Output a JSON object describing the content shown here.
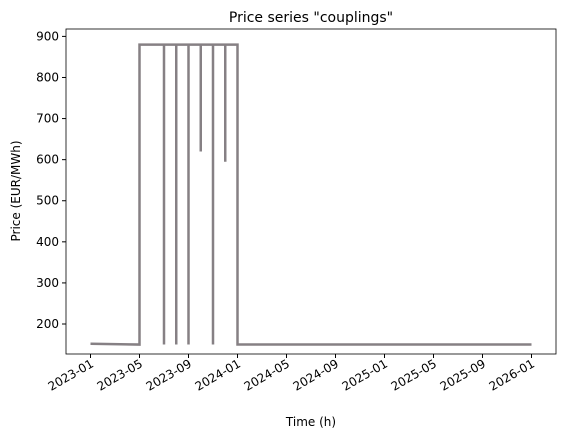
{
  "chart_data": {
    "type": "line",
    "title": "Price series \"couplings\"",
    "x_label": "Time (h)",
    "y_label": "Price (EUR/MWh)",
    "x": [
      "2023-01",
      "2023-05",
      "2023-05",
      "2023-07",
      "2023-07",
      "2023-07",
      "2023-08",
      "2023-08",
      "2023-08",
      "2023-09",
      "2023-09",
      "2023-09",
      "2023-10",
      "2023-10",
      "2023-10",
      "2023-11",
      "2023-11",
      "2023-11",
      "2023-12",
      "2023-12",
      "2023-12",
      "2024-01",
      "2024-01",
      "2026-01"
    ],
    "series": [
      {
        "color": "#868084",
        "values": [
          152,
          150,
          880,
          880,
          150,
          880,
          880,
          150,
          880,
          880,
          150,
          880,
          880,
          620,
          880,
          880,
          150,
          880,
          880,
          595,
          880,
          880,
          150,
          150
        ]
      }
    ],
    "xlim": [
      "2022-11",
      "2026-03"
    ],
    "xticks": [
      "2023-01",
      "2023-05",
      "2023-09",
      "2024-01",
      "2024-05",
      "2024-09",
      "2025-01",
      "2025-05",
      "2025-09",
      "2026-01"
    ],
    "ylim": [
      127,
      918
    ],
    "yticks": [
      200,
      300,
      400,
      500,
      600,
      700,
      800,
      900
    ]
  }
}
